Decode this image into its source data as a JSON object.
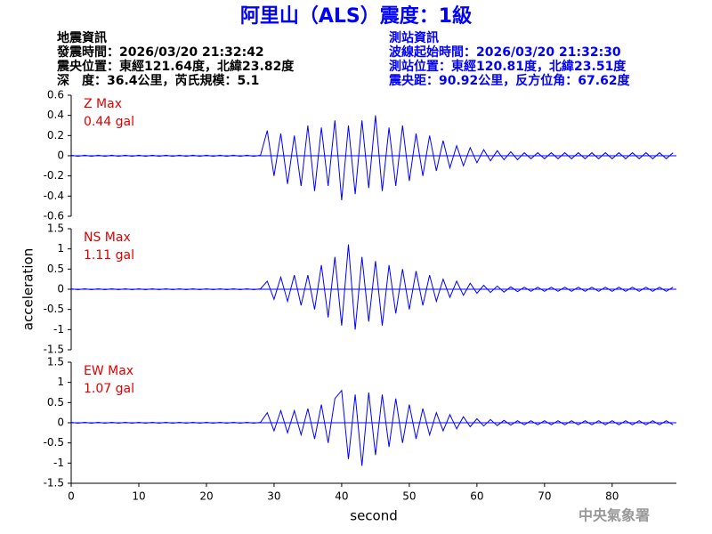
{
  "header": {
    "title": "阿里山（ALS）震度：1級",
    "left": [
      "地震資訊",
      "發震時間：2026/03/20 21:32:42",
      "震央位置：東經121.64度，北緯23.82度",
      "深　度：36.4公里，芮氏規模：5.1"
    ],
    "right": [
      "測站資訊",
      "波線起始時間：2026/03/20 21:32:30",
      "測站位置：東經120.81度，北緯23.51度",
      "震央距：90.92公里，反方位角：67.62度"
    ],
    "credit": "中央氣象署"
  },
  "chart_data": [
    {
      "type": "line",
      "annotations": [
        "Z Max",
        "0.44 gal"
      ],
      "color": "#0000ff",
      "xlim": [
        0,
        89.5
      ],
      "ylim": [
        -0.6,
        0.6
      ],
      "yticks": [
        0.6,
        0.4,
        0.2,
        0,
        -0.2,
        -0.4,
        -0.6
      ],
      "x": [
        0,
        1,
        2,
        3,
        4,
        5,
        6,
        7,
        8,
        9,
        10,
        11,
        12,
        13,
        14,
        15,
        16,
        17,
        18,
        19,
        20,
        21,
        22,
        23,
        24,
        25,
        26,
        27,
        28,
        29,
        30,
        31,
        32,
        33,
        34,
        35,
        36,
        37,
        38,
        39,
        40,
        41,
        42,
        43,
        44,
        45,
        46,
        47,
        48,
        49,
        50,
        51,
        52,
        53,
        54,
        55,
        56,
        57,
        58,
        59,
        60,
        61,
        62,
        63,
        64,
        65,
        66,
        67,
        68,
        69,
        70,
        71,
        72,
        73,
        74,
        75,
        76,
        77,
        78,
        79,
        80,
        81,
        82,
        83,
        84,
        85,
        86,
        87,
        88,
        89
      ],
      "values": [
        0.005,
        -0.005,
        0.005,
        -0.005,
        0.005,
        -0.005,
        0.005,
        -0.005,
        0.005,
        -0.005,
        0.005,
        -0.005,
        0.005,
        -0.005,
        0.005,
        -0.005,
        0.005,
        -0.005,
        0.005,
        -0.005,
        0.005,
        -0.005,
        0.005,
        -0.005,
        0.005,
        -0.005,
        0.005,
        -0.005,
        0.005,
        0.25,
        -0.2,
        0.22,
        -0.28,
        0.2,
        -0.3,
        0.3,
        -0.35,
        0.28,
        -0.3,
        0.35,
        -0.44,
        0.3,
        -0.38,
        0.35,
        -0.32,
        0.4,
        -0.35,
        0.28,
        -0.3,
        0.3,
        -0.25,
        0.22,
        -0.2,
        0.2,
        -0.15,
        0.15,
        -0.12,
        0.1,
        -0.1,
        0.08,
        -0.07,
        0.06,
        -0.05,
        0.05,
        -0.04,
        0.04,
        -0.04,
        0.03,
        -0.03,
        0.03,
        -0.03,
        0.03,
        -0.03,
        0.03,
        -0.03,
        0.03,
        -0.03,
        0.03,
        -0.03,
        0.03,
        -0.03,
        0.03,
        -0.03,
        0.03,
        -0.03,
        0.03,
        -0.03,
        0.03,
        -0.03,
        0.03
      ]
    },
    {
      "type": "line",
      "annotations": [
        "NS Max",
        "1.11 gal"
      ],
      "color": "#0000ff",
      "ylabel": "acceleration",
      "xlim": [
        0,
        89.5
      ],
      "ylim": [
        -1.5,
        1.5
      ],
      "yticks": [
        1.5,
        1,
        0.5,
        0,
        -0.5,
        -1,
        -1.5
      ],
      "x": [
        0,
        1,
        2,
        3,
        4,
        5,
        6,
        7,
        8,
        9,
        10,
        11,
        12,
        13,
        14,
        15,
        16,
        17,
        18,
        19,
        20,
        21,
        22,
        23,
        24,
        25,
        26,
        27,
        28,
        29,
        30,
        31,
        32,
        33,
        34,
        35,
        36,
        37,
        38,
        39,
        40,
        41,
        42,
        43,
        44,
        45,
        46,
        47,
        48,
        49,
        50,
        51,
        52,
        53,
        54,
        55,
        56,
        57,
        58,
        59,
        60,
        61,
        62,
        63,
        64,
        65,
        66,
        67,
        68,
        69,
        70,
        71,
        72,
        73,
        74,
        75,
        76,
        77,
        78,
        79,
        80,
        81,
        82,
        83,
        84,
        85,
        86,
        87,
        88,
        89
      ],
      "values": [
        0.01,
        -0.01,
        0.01,
        -0.01,
        0.01,
        -0.01,
        0.01,
        -0.01,
        0.01,
        -0.01,
        0.01,
        -0.01,
        0.01,
        -0.01,
        0.01,
        -0.01,
        0.01,
        -0.01,
        0.01,
        -0.01,
        0.01,
        -0.01,
        0.01,
        -0.01,
        0.01,
        -0.01,
        0.01,
        -0.01,
        0.01,
        0.2,
        -0.25,
        0.3,
        -0.3,
        0.35,
        -0.4,
        0.35,
        -0.5,
        0.6,
        -0.7,
        0.8,
        -0.9,
        1.11,
        -1.0,
        0.8,
        -0.8,
        0.7,
        -0.9,
        0.6,
        -0.6,
        0.5,
        -0.5,
        0.45,
        -0.4,
        0.35,
        -0.3,
        0.25,
        -0.2,
        0.2,
        -0.15,
        0.15,
        -0.1,
        0.1,
        -0.08,
        0.08,
        -0.07,
        0.06,
        -0.06,
        0.05,
        -0.05,
        0.05,
        -0.05,
        0.05,
        -0.05,
        0.05,
        -0.05,
        0.05,
        -0.05,
        0.05,
        -0.05,
        0.05,
        -0.05,
        0.05,
        -0.05,
        0.05,
        -0.05,
        0.05,
        -0.05,
        0.05,
        -0.05,
        0.05
      ]
    },
    {
      "type": "line",
      "annotations": [
        "EW Max",
        "1.07 gal"
      ],
      "color": "#0000ff",
      "xlabel": "second",
      "xlim": [
        0,
        89.5
      ],
      "ylim": [
        -1.5,
        1.5
      ],
      "yticks": [
        1.5,
        1,
        0.5,
        0,
        -0.5,
        -1,
        -1.5
      ],
      "xticks": [
        0,
        10,
        20,
        30,
        40,
        50,
        60,
        70,
        80
      ],
      "x": [
        0,
        1,
        2,
        3,
        4,
        5,
        6,
        7,
        8,
        9,
        10,
        11,
        12,
        13,
        14,
        15,
        16,
        17,
        18,
        19,
        20,
        21,
        22,
        23,
        24,
        25,
        26,
        27,
        28,
        29,
        30,
        31,
        32,
        33,
        34,
        35,
        36,
        37,
        38,
        39,
        40,
        41,
        42,
        43,
        44,
        45,
        46,
        47,
        48,
        49,
        50,
        51,
        52,
        53,
        54,
        55,
        56,
        57,
        58,
        59,
        60,
        61,
        62,
        63,
        64,
        65,
        66,
        67,
        68,
        69,
        70,
        71,
        72,
        73,
        74,
        75,
        76,
        77,
        78,
        79,
        80,
        81,
        82,
        83,
        84,
        85,
        86,
        87,
        88,
        89
      ],
      "values": [
        0.01,
        -0.01,
        0.01,
        -0.01,
        0.01,
        -0.01,
        0.01,
        -0.01,
        0.01,
        -0.01,
        0.01,
        -0.01,
        0.01,
        -0.01,
        0.01,
        -0.01,
        0.01,
        -0.01,
        0.01,
        -0.01,
        0.01,
        -0.01,
        0.01,
        -0.01,
        0.01,
        -0.01,
        0.01,
        -0.01,
        0.01,
        0.25,
        -0.2,
        0.3,
        -0.25,
        0.3,
        -0.3,
        0.35,
        -0.4,
        0.45,
        -0.5,
        0.6,
        0.8,
        -0.9,
        0.7,
        -1.07,
        0.75,
        -0.8,
        0.7,
        -0.6,
        0.6,
        -0.5,
        0.45,
        -0.4,
        0.35,
        -0.3,
        0.25,
        -0.2,
        0.2,
        -0.15,
        0.15,
        -0.1,
        0.1,
        -0.08,
        0.08,
        -0.07,
        0.06,
        -0.06,
        0.05,
        -0.05,
        0.05,
        -0.05,
        0.05,
        -0.05,
        0.05,
        -0.05,
        0.05,
        -0.05,
        0.05,
        -0.05,
        0.05,
        -0.05,
        0.05,
        -0.05,
        0.05,
        -0.05,
        0.05,
        -0.05,
        0.05,
        -0.05,
        0.05,
        -0.05
      ]
    }
  ]
}
